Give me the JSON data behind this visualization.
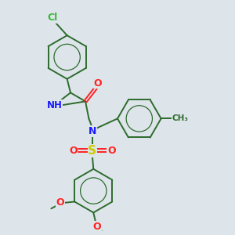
{
  "background_color": "#dde5ea",
  "bond_color": "#2d6b2d",
  "atom_colors": {
    "Cl": "#3ab83a",
    "N": "#1a1aff",
    "O": "#ff2222",
    "S": "#cccc00",
    "C": "#2d6b2d"
  },
  "figsize": [
    3.0,
    3.0
  ],
  "dpi": 100
}
